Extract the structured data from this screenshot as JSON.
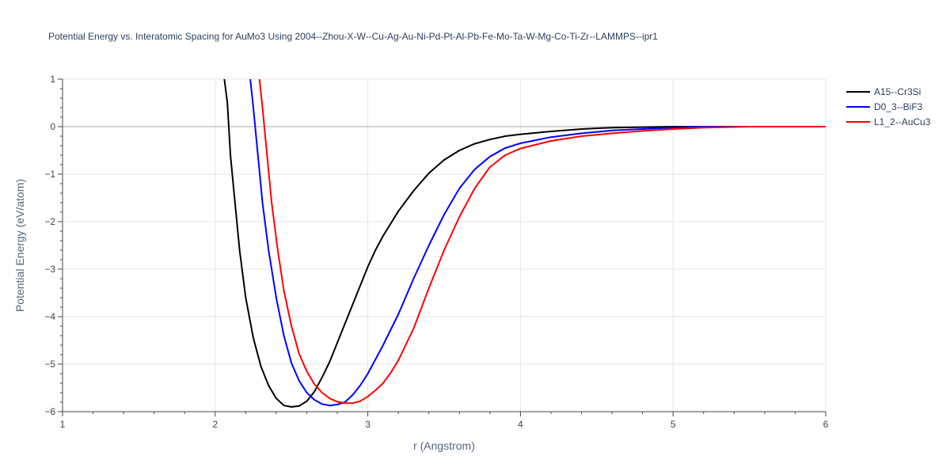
{
  "chart_data": {
    "type": "line",
    "title": "Potential Energy vs. Interatomic Spacing for AuMo3 Using 2004--Zhou-X-W--Cu-Ag-Au-Ni-Pd-Pt-Al-Pb-Fe-Mo-Ta-W-Mg-Co-Ti-Zr--LAMMPS--ipr1",
    "xlabel": "r (Angstrom)",
    "ylabel": "Potential Energy (eV/atom)",
    "xlim": [
      1,
      6
    ],
    "ylim": [
      -6,
      1
    ],
    "xticks": [
      1,
      2,
      3,
      4,
      5,
      6
    ],
    "xtick_labels": [
      "1",
      "2",
      "3",
      "4",
      "5",
      "6"
    ],
    "yticks": [
      1,
      0,
      -1,
      -2,
      -3,
      -4,
      -5,
      -6
    ],
    "ytick_labels": [
      "1",
      "0",
      "−1",
      "−2",
      "−3",
      "−4",
      "−5",
      "−6"
    ],
    "grid": true,
    "legend_position": "top-right",
    "series": [
      {
        "name": "A15--Cr3Si",
        "color": "#000000",
        "x": [
          2.06,
          2.08,
          2.1,
          2.13,
          2.16,
          2.2,
          2.25,
          2.3,
          2.35,
          2.4,
          2.45,
          2.5,
          2.55,
          2.6,
          2.65,
          2.7,
          2.75,
          2.8,
          2.85,
          2.9,
          2.95,
          3.0,
          3.05,
          3.1,
          3.2,
          3.3,
          3.4,
          3.5,
          3.6,
          3.7,
          3.8,
          3.9,
          4.0,
          4.2,
          4.4,
          4.6,
          4.8,
          5.0,
          5.2,
          5.5,
          6.0
        ],
        "y": [
          1.0,
          0.5,
          -0.6,
          -1.6,
          -2.6,
          -3.6,
          -4.45,
          -5.05,
          -5.45,
          -5.72,
          -5.87,
          -5.9,
          -5.88,
          -5.78,
          -5.58,
          -5.28,
          -4.95,
          -4.55,
          -4.15,
          -3.75,
          -3.35,
          -2.95,
          -2.6,
          -2.3,
          -1.78,
          -1.35,
          -0.98,
          -0.7,
          -0.5,
          -0.36,
          -0.27,
          -0.2,
          -0.16,
          -0.1,
          -0.05,
          -0.02,
          -0.01,
          0.0,
          0.0,
          0.0,
          0.0
        ]
      },
      {
        "name": "D0_3--BiF3",
        "color": "#0000ff",
        "x": [
          2.23,
          2.25,
          2.28,
          2.31,
          2.35,
          2.4,
          2.45,
          2.5,
          2.55,
          2.6,
          2.65,
          2.7,
          2.75,
          2.8,
          2.85,
          2.9,
          2.95,
          3.0,
          3.05,
          3.1,
          3.2,
          3.3,
          3.4,
          3.5,
          3.6,
          3.7,
          3.8,
          3.9,
          4.0,
          4.2,
          4.4,
          4.6,
          4.8,
          5.0,
          5.2,
          5.5,
          6.0
        ],
        "y": [
          1.0,
          0.4,
          -0.6,
          -1.6,
          -2.6,
          -3.6,
          -4.4,
          -4.98,
          -5.35,
          -5.6,
          -5.75,
          -5.84,
          -5.87,
          -5.85,
          -5.8,
          -5.65,
          -5.45,
          -5.2,
          -4.9,
          -4.6,
          -3.95,
          -3.2,
          -2.5,
          -1.85,
          -1.3,
          -0.9,
          -0.63,
          -0.45,
          -0.35,
          -0.22,
          -0.14,
          -0.08,
          -0.05,
          -0.02,
          0.0,
          0.0,
          0.0
        ]
      },
      {
        "name": "L1_2--AuCu3",
        "color": "#ff0000",
        "x": [
          2.29,
          2.31,
          2.34,
          2.37,
          2.41,
          2.45,
          2.5,
          2.55,
          2.6,
          2.65,
          2.7,
          2.75,
          2.8,
          2.85,
          2.9,
          2.95,
          3.0,
          3.05,
          3.1,
          3.15,
          3.2,
          3.3,
          3.4,
          3.5,
          3.6,
          3.7,
          3.8,
          3.9,
          4.0,
          4.2,
          4.4,
          4.6,
          4.8,
          5.0,
          5.2,
          5.5,
          6.0
        ],
        "y": [
          1.0,
          0.4,
          -0.6,
          -1.6,
          -2.6,
          -3.45,
          -4.2,
          -4.78,
          -5.15,
          -5.42,
          -5.6,
          -5.72,
          -5.79,
          -5.82,
          -5.82,
          -5.78,
          -5.68,
          -5.55,
          -5.4,
          -5.18,
          -4.92,
          -4.25,
          -3.4,
          -2.6,
          -1.9,
          -1.3,
          -0.85,
          -0.6,
          -0.46,
          -0.3,
          -0.2,
          -0.14,
          -0.09,
          -0.05,
          -0.02,
          0.0,
          0.0
        ]
      }
    ]
  }
}
